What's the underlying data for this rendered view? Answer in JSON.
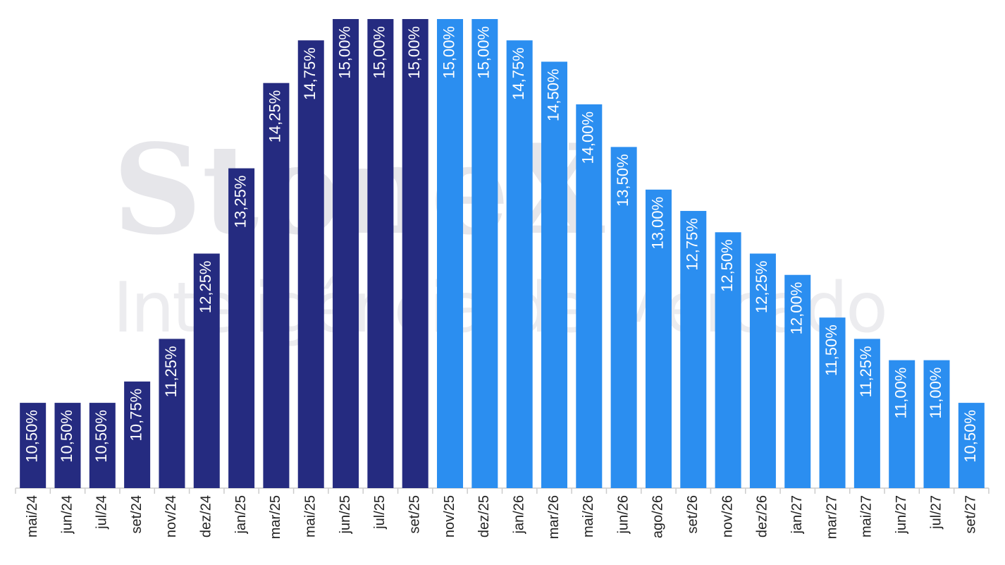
{
  "chart_data": {
    "type": "bar",
    "watermark": [
      "StoneX",
      "Inteligência de Mercado"
    ],
    "categories": [
      "mai/24",
      "jun/24",
      "jul/24",
      "set/24",
      "nov/24",
      "dez/24",
      "jan/25",
      "mar/25",
      "mai/25",
      "jun/25",
      "jul/25",
      "set/25",
      "nov/25",
      "dez/25",
      "jan/26",
      "mar/26",
      "mai/26",
      "jun/26",
      "ago/26",
      "set/26",
      "nov/26",
      "dez/26",
      "jan/27",
      "mar/27",
      "mai/27",
      "jun/27",
      "jul/27",
      "set/27"
    ],
    "values": [
      10.5,
      10.5,
      10.5,
      10.75,
      11.25,
      12.25,
      13.25,
      14.25,
      14.75,
      15,
      15,
      15,
      15,
      15,
      14.75,
      14.5,
      14,
      13.5,
      13,
      12.75,
      12.5,
      12.25,
      12,
      11.5,
      11.25,
      11,
      11,
      10.5
    ],
    "value_labels": [
      "10,50%",
      "10,50%",
      "10,50%",
      "10,75%",
      "11,25%",
      "12,25%",
      "13,25%",
      "14,25%",
      "14,75%",
      "15,00%",
      "15,00%",
      "15,00%",
      "15,00%",
      "15,00%",
      "14,75%",
      "14,50%",
      "14,00%",
      "13,50%",
      "13,00%",
      "12,75%",
      "12,50%",
      "12,25%",
      "12,00%",
      "11,50%",
      "11,25%",
      "11,00%",
      "11,00%",
      "10,50%"
    ],
    "colors": [
      "#252b80",
      "#252b80",
      "#252b80",
      "#252b80",
      "#252b80",
      "#252b80",
      "#252b80",
      "#252b80",
      "#252b80",
      "#252b80",
      "#252b80",
      "#252b80",
      "#2b8ef0",
      "#2b8ef0",
      "#2b8ef0",
      "#2b8ef0",
      "#2b8ef0",
      "#2b8ef0",
      "#2b8ef0",
      "#2b8ef0",
      "#2b8ef0",
      "#2b8ef0",
      "#2b8ef0",
      "#2b8ef0",
      "#2b8ef0",
      "#2b8ef0",
      "#2b8ef0",
      "#2b8ef0"
    ],
    "ylim": [
      9.5,
      15
    ]
  }
}
